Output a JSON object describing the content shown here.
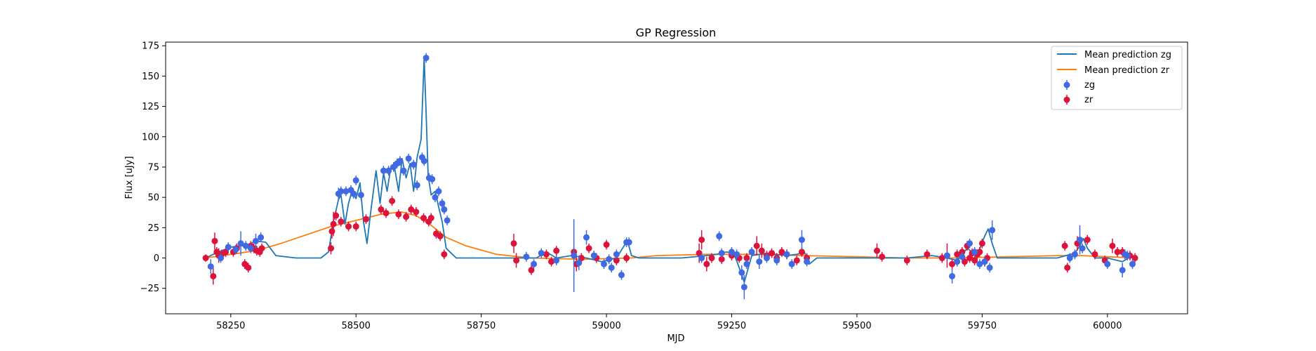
{
  "chart_data": {
    "type": "scatter",
    "title": "GP Regression",
    "xlabel": "MJD",
    "ylabel": "Flux [uJy]",
    "xlim": [
      58120,
      60160
    ],
    "ylim": [
      -46,
      178
    ],
    "xticks": [
      58250,
      58500,
      58750,
      59000,
      59250,
      59500,
      59750,
      60000
    ],
    "yticks": [
      -25,
      0,
      25,
      50,
      75,
      100,
      125,
      150,
      175
    ],
    "grid": false,
    "legend_position": "upper right",
    "legend": [
      "Mean prediction zg",
      "Mean prediction zr",
      "zg",
      "zr"
    ],
    "colors": {
      "zg_line": "#1f77b4",
      "zr_line": "#ff7f0e",
      "zg_points": "#4169e1",
      "zr_points": "#dc143c"
    },
    "series": [
      {
        "name": "Mean prediction zg",
        "kind": "line",
        "x": [
          58200,
          58220,
          58250,
          58270,
          58285,
          58300,
          58320,
          58340,
          58380,
          58430,
          58445,
          58455,
          58465,
          58470,
          58478,
          58485,
          58492,
          58500,
          58508,
          58515,
          58522,
          58530,
          58540,
          58548,
          58555,
          58562,
          58570,
          58578,
          58585,
          58592,
          58600,
          58608,
          58615,
          58622,
          58630,
          58636,
          58640,
          58644,
          58650,
          58658,
          58665,
          58672,
          58680,
          58700,
          58750,
          58800,
          58860,
          58880,
          58900,
          58930,
          58960,
          58990,
          59020,
          59035,
          59042,
          59050,
          59065,
          59150,
          59200,
          59220,
          59240,
          59255,
          59265,
          59275,
          59290,
          59320,
          59360,
          59380,
          59395,
          59405,
          59420,
          59500,
          59600,
          59650,
          59680,
          59700,
          59720,
          59740,
          59755,
          59762,
          59770,
          59780,
          59800,
          59900,
          59935,
          59945,
          59952,
          59960,
          59975,
          60000,
          60030,
          60050,
          60060
        ],
        "y": [
          0,
          4,
          9,
          10,
          11,
          14,
          13,
          2,
          0,
          0,
          5,
          30,
          48,
          52,
          28,
          45,
          55,
          49,
          62,
          30,
          12,
          40,
          72,
          45,
          70,
          55,
          76,
          72,
          55,
          82,
          66,
          78,
          55,
          83,
          98,
          165,
          120,
          68,
          52,
          55,
          42,
          30,
          8,
          0,
          0,
          0,
          0,
          5,
          0,
          2,
          0,
          -3,
          0,
          10,
          14,
          2,
          0,
          0,
          2,
          3,
          5,
          3,
          -8,
          -20,
          2,
          4,
          2,
          3,
          5,
          -5,
          0,
          0,
          0,
          2,
          0,
          -2,
          8,
          2,
          18,
          24,
          12,
          0,
          0,
          0,
          4,
          10,
          16,
          8,
          0,
          0,
          -3,
          2,
          0
        ]
      },
      {
        "name": "Mean prediction zr",
        "kind": "line",
        "x": [
          58200,
          58250,
          58300,
          58350,
          58400,
          58450,
          58500,
          58550,
          58590,
          58620,
          58650,
          58680,
          58720,
          58780,
          58850,
          58950,
          59050,
          59100,
          59200,
          59300,
          59400,
          59500,
          59600,
          59700,
          59800,
          59900,
          59950,
          60000,
          60060
        ],
        "y": [
          0,
          3,
          6,
          12,
          19,
          26,
          31,
          36,
          38,
          35,
          27,
          17,
          10,
          3,
          0,
          -1,
          0,
          2,
          3,
          3,
          2,
          1,
          0,
          0,
          1,
          2,
          2,
          1,
          0
        ]
      },
      {
        "name": "zg",
        "kind": "points",
        "x": [
          58210,
          58230,
          58245,
          58260,
          58270,
          58280,
          58290,
          58300,
          58310,
          58465,
          58470,
          58480,
          58490,
          58495,
          58500,
          58510,
          58555,
          58565,
          58575,
          58582,
          58588,
          58595,
          58605,
          58615,
          58622,
          58632,
          58636,
          58640,
          58646,
          58652,
          58658,
          58665,
          58672,
          58676,
          58682,
          58840,
          58855,
          58870,
          58900,
          58935,
          58945,
          58960,
          58975,
          58995,
          59005,
          59010,
          59020,
          59030,
          59040,
          59045,
          59190,
          59225,
          59230,
          59250,
          59260,
          59270,
          59275,
          59280,
          59290,
          59305,
          59320,
          59340,
          59360,
          59370,
          59390,
          59400,
          59680,
          59690,
          59700,
          59710,
          59725,
          59735,
          59745,
          59755,
          59765,
          59770,
          59925,
          59935,
          59945,
          59950,
          60000,
          60030,
          60035,
          60040,
          60050
        ],
        "y": [
          -7,
          0,
          9,
          7,
          12,
          10,
          8,
          14,
          17,
          53,
          55,
          55,
          56,
          53,
          64,
          52,
          72,
          72,
          75,
          78,
          80,
          72,
          82,
          77,
          60,
          83,
          80,
          165,
          66,
          65,
          50,
          55,
          45,
          40,
          31,
          1,
          -5,
          4,
          -2,
          2,
          -4,
          17,
          2,
          -5,
          -1,
          -8,
          3,
          -14,
          13,
          13,
          0,
          18,
          4,
          5,
          3,
          -12,
          -24,
          -5,
          5,
          -3,
          0,
          -2,
          3,
          -5,
          15,
          -3,
          2,
          -15,
          -3,
          1,
          12,
          5,
          -5,
          -3,
          -8,
          23,
          0,
          3,
          15,
          8,
          -5,
          -10,
          3,
          2,
          -5
        ],
        "err": [
          6,
          4,
          4,
          4,
          10,
          4,
          4,
          6,
          4,
          5,
          4,
          4,
          4,
          4,
          4,
          4,
          4,
          4,
          4,
          4,
          4,
          4,
          4,
          4,
          4,
          4,
          4,
          4,
          4,
          4,
          4,
          4,
          4,
          4,
          4,
          4,
          4,
          4,
          4,
          30,
          6,
          6,
          4,
          4,
          4,
          4,
          4,
          4,
          4,
          4,
          4,
          4,
          4,
          4,
          4,
          6,
          10,
          4,
          4,
          6,
          4,
          4,
          4,
          4,
          8,
          4,
          4,
          6,
          4,
          4,
          4,
          4,
          4,
          4,
          4,
          8,
          4,
          4,
          12,
          4,
          4,
          6,
          4,
          4,
          4
        ]
      },
      {
        "name": "zr",
        "kind": "points",
        "x": [
          58200,
          58215,
          58218,
          58222,
          58226,
          58232,
          58240,
          58255,
          58262,
          58278,
          58285,
          58290,
          58296,
          58302,
          58308,
          58312,
          58450,
          58452,
          58455,
          58460,
          58470,
          58485,
          58500,
          58520,
          58550,
          58560,
          58572,
          58585,
          58600,
          58610,
          58620,
          58635,
          58645,
          58650,
          58660,
          58668,
          58676,
          58815,
          58820,
          58850,
          58880,
          58890,
          58900,
          58935,
          58940,
          58950,
          58965,
          58980,
          59000,
          59020,
          59040,
          59185,
          59190,
          59200,
          59210,
          59230,
          59250,
          59265,
          59280,
          59300,
          59310,
          59320,
          59330,
          59340,
          59350,
          59360,
          59380,
          59390,
          59400,
          59540,
          59550,
          59600,
          59640,
          59670,
          59680,
          59690,
          59700,
          59710,
          59715,
          59720,
          59725,
          59730,
          59735,
          59740,
          59745,
          59750,
          59755,
          59760,
          59915,
          59920,
          59940,
          59960,
          59975,
          59995,
          60010,
          60020,
          60030,
          60045,
          60055
        ],
        "y": [
          0,
          -15,
          14,
          5,
          2,
          3,
          5,
          5,
          8,
          -5,
          -8,
          10,
          8,
          6,
          5,
          8,
          8,
          22,
          28,
          35,
          30,
          26,
          26,
          32,
          40,
          37,
          47,
          36,
          34,
          40,
          38,
          33,
          30,
          33,
          20,
          18,
          3,
          12,
          -2,
          -10,
          3,
          -3,
          6,
          5,
          -5,
          0,
          8,
          0,
          11,
          -2,
          0,
          4,
          15,
          -5,
          0,
          -1,
          2,
          0,
          0,
          10,
          6,
          2,
          4,
          0,
          5,
          3,
          -2,
          5,
          0,
          6,
          1,
          -2,
          3,
          0,
          2,
          -5,
          3,
          5,
          -3,
          10,
          0,
          4,
          -2,
          3,
          5,
          12,
          -3,
          0,
          10,
          -8,
          12,
          15,
          3,
          -2,
          10,
          5,
          5,
          2,
          0
        ],
        "err": [
          3,
          7,
          7,
          4,
          6,
          4,
          4,
          4,
          4,
          4,
          4,
          4,
          4,
          4,
          4,
          4,
          5,
          6,
          10,
          4,
          4,
          4,
          4,
          4,
          4,
          4,
          4,
          4,
          4,
          4,
          4,
          4,
          4,
          4,
          4,
          4,
          4,
          8,
          6,
          4,
          4,
          4,
          4,
          4,
          6,
          4,
          4,
          4,
          4,
          4,
          4,
          8,
          8,
          6,
          4,
          4,
          4,
          4,
          4,
          8,
          6,
          4,
          4,
          4,
          4,
          4,
          4,
          4,
          4,
          6,
          4,
          4,
          4,
          4,
          10,
          4,
          4,
          4,
          4,
          4,
          4,
          4,
          4,
          4,
          4,
          4,
          4,
          4,
          4,
          4,
          6,
          4,
          4,
          4,
          6,
          4,
          4,
          4,
          4
        ]
      }
    ]
  }
}
